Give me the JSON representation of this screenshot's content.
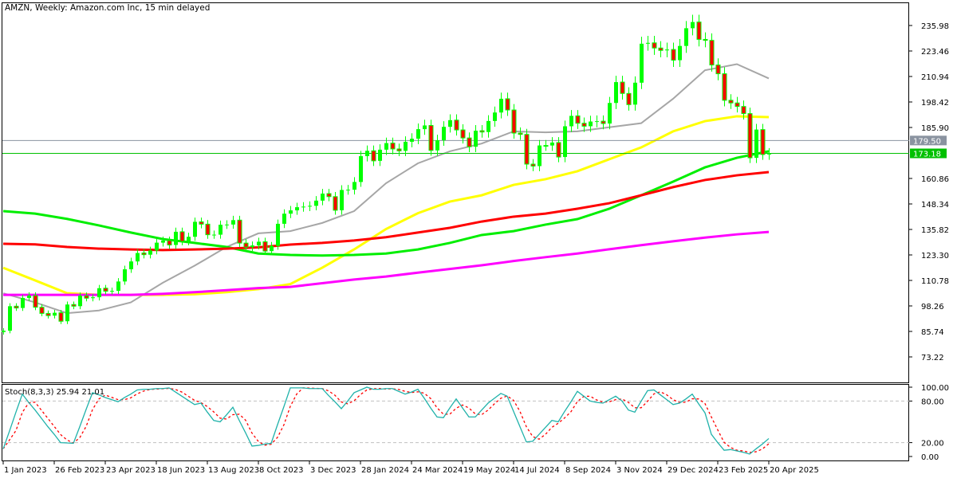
{
  "header": {
    "title": "AMZN, Weekly:  Amazon.com Inc, 15 min delayed"
  },
  "price_lines": [
    {
      "value": 179.5,
      "label": "179.50",
      "color": "#8a93a0"
    },
    {
      "value": 173.18,
      "label": "173.18",
      "color": "#00c000"
    }
  ],
  "chart_data": [
    {
      "type": "candlestick",
      "symbol": "AMZN",
      "period": "Weekly",
      "colors": {
        "bull": "#00ff00",
        "bear": "#ff0000",
        "outline": "#00ff00"
      },
      "y_tick_labels": [
        "235.98",
        "223.46",
        "210.94",
        "198.42",
        "185.90",
        "160.86",
        "148.34",
        "135.82",
        "123.30",
        "110.78",
        "98.26",
        "85.74",
        "73.22"
      ],
      "x_tick_labels": [
        "1 Jan 2023",
        "26 Feb 2023",
        "23 Apr 2023",
        "18 Jun 2023",
        "13 Aug 2023",
        "8 Oct 2023",
        "3 Dec 2023",
        "28 Jan 2024",
        "24 Mar 2024",
        "19 May 2024",
        "14 Jul 2024",
        "8 Sep 2024",
        "3 Nov 2024",
        "29 Dec 2024",
        "23 Feb 2025",
        "20 Apr 2025"
      ],
      "first_open": 85.46,
      "close": [
        86.08,
        98.12,
        97.25,
        102.18,
        103.39,
        97.61,
        94.58,
        93.5,
        94.9,
        90.73,
        98.95,
        98.13,
        103.29,
        102.06,
        102.51,
        106.96,
        105.45,
        105.66,
        110.26,
        116.25,
        120.11,
        124.25,
        123.43,
        125.49,
        129.33,
        130.36,
        128.2,
        134.68,
        130.0,
        132.21,
        139.57,
        138.41,
        133.22,
        133.26,
        138.12,
        138.23,
        140.39,
        129.12,
        127.12,
        127.96,
        129.79,
        125.17,
        127.74,
        138.6,
        143.56,
        145.18,
        146.74,
        147.03,
        147.42,
        149.97,
        153.42,
        151.94,
        145.24,
        155.2,
        155.34,
        159.12,
        171.81,
        174.45,
        169.51,
        174.99,
        178.22,
        175.35,
        174.42,
        178.87,
        180.38,
        185.07,
        186.89,
        174.63,
        179.62,
        186.21,
        189.5,
        184.7,
        180.75,
        176.44,
        184.3,
        183.66,
        189.08,
        193.25,
        200.0,
        194.49,
        183.13,
        182.5,
        167.9,
        166.94,
        177.06,
        177.04,
        178.5,
        171.39,
        186.49,
        191.6,
        187.97,
        186.51,
        188.82,
        188.99,
        187.83,
        197.93,
        208.18,
        202.61,
        197.12,
        207.89,
        227.03,
        227.46,
        224.92,
        223.75,
        224.19,
        218.94,
        225.94,
        234.64,
        237.68,
        229.15,
        228.68,
        216.58,
        212.28,
        199.25,
        197.95,
        196.21,
        192.72,
        171.0,
        184.87,
        172.61,
        173.18
      ],
      "moving_averages": {
        "sample_dates": [
          "2023-01-01",
          "2023-02-05",
          "2023-03-12",
          "2023-04-16",
          "2023-05-21",
          "2023-06-25",
          "2023-07-30",
          "2023-09-03",
          "2023-10-08",
          "2023-11-12",
          "2023-12-17",
          "2024-01-21",
          "2024-02-25",
          "2024-03-31",
          "2024-05-05",
          "2024-06-09",
          "2024-07-14",
          "2024-08-18",
          "2024-09-22",
          "2024-10-27",
          "2024-12-01",
          "2025-01-05",
          "2025-02-09",
          "2025-03-16",
          "2025-04-20"
        ],
        "series": [
          {
            "color": "#a6a6a6",
            "values": [
              104.5,
              100,
              94.7,
              96,
              100,
              109.6,
              118,
              127.2,
              133.9,
              135,
              139,
              144.8,
              158.5,
              168.3,
              174.2,
              178,
              184,
              183.5,
              184,
              186,
              188,
              200,
              214,
              217,
              210
            ]
          },
          {
            "color": "#ffff00",
            "values": [
              117,
              110.8,
              104.5,
              103.7,
              103.7,
              103.7,
              104,
              105,
              106.5,
              109,
              117,
              126,
              136,
              143.8,
              149.5,
              152.6,
              157.7,
              160.5,
              164.4,
              170.3,
              176.1,
              184,
              189,
              191.4,
              191
            ]
          },
          {
            "color": "#00ee00",
            "values": [
              144.8,
              143.6,
              141,
              137.8,
              134.3,
              131.1,
              129.2,
              127.2,
              124,
              123.3,
              123,
              123.3,
              124,
              126,
              129.2,
              133.1,
              135,
              138.2,
              140.9,
              146,
              152.6,
              159.3,
              166.3,
              171,
              174.2
            ]
          },
          {
            "color": "#ff0000",
            "values": [
              128.8,
              128.5,
              127.2,
              126.4,
              126,
              125.7,
              126,
              126.4,
              127,
              128.4,
              129.2,
              130.4,
              132,
              134.3,
              136.6,
              139.7,
              142.1,
              143.6,
              146,
              148.7,
              152.6,
              156.6,
              160.1,
              162.4,
              164
            ]
          },
          {
            "color": "#ff00ff",
            "values": [
              103.7,
              103.7,
              103.7,
              103.7,
              103.7,
              104.2,
              105,
              106,
              107,
              107.6,
              109.4,
              111.2,
              112.7,
              114.6,
              116.4,
              118.2,
              120.3,
              122.2,
              124,
              126.1,
              128.1,
              130,
              131.8,
              133.4,
              134.6
            ]
          }
        ]
      }
    },
    {
      "type": "line",
      "indicator": "Stochastic",
      "label": "Stoch(8,3,3) 25.94 21.01",
      "y_tick_labels": [
        "100.00",
        "80.00",
        "20.00",
        "0.00"
      ],
      "levels": [
        80,
        20
      ],
      "k_color": "#20b2aa",
      "d_color": "#ff0000",
      "k": [
        11,
        37,
        64,
        90,
        78,
        67,
        55,
        43,
        32,
        20,
        19.5,
        19,
        43,
        68,
        92,
        89,
        85,
        82,
        79,
        85,
        90,
        96,
        97,
        97,
        98,
        98,
        99,
        93,
        87,
        81,
        75,
        77,
        64,
        52,
        50,
        60,
        71,
        52,
        34,
        15,
        16,
        18,
        19,
        46,
        72,
        99,
        99,
        99,
        98,
        98,
        98,
        88,
        79,
        69,
        80,
        92,
        96,
        100,
        97,
        97,
        98,
        98,
        94,
        90,
        93,
        97,
        84,
        70,
        57,
        56,
        70,
        83,
        70,
        57,
        57,
        67,
        77,
        84,
        91,
        87,
        65,
        43,
        21,
        22,
        32,
        42,
        52,
        50,
        65,
        79,
        94,
        87,
        80,
        78,
        77,
        82,
        87,
        80,
        67,
        64,
        80,
        95,
        96,
        89,
        82,
        75,
        77,
        83,
        90,
        76,
        63,
        32,
        20,
        9,
        10,
        8,
        6,
        3.5,
        11,
        18,
        25.94
      ]
    }
  ]
}
